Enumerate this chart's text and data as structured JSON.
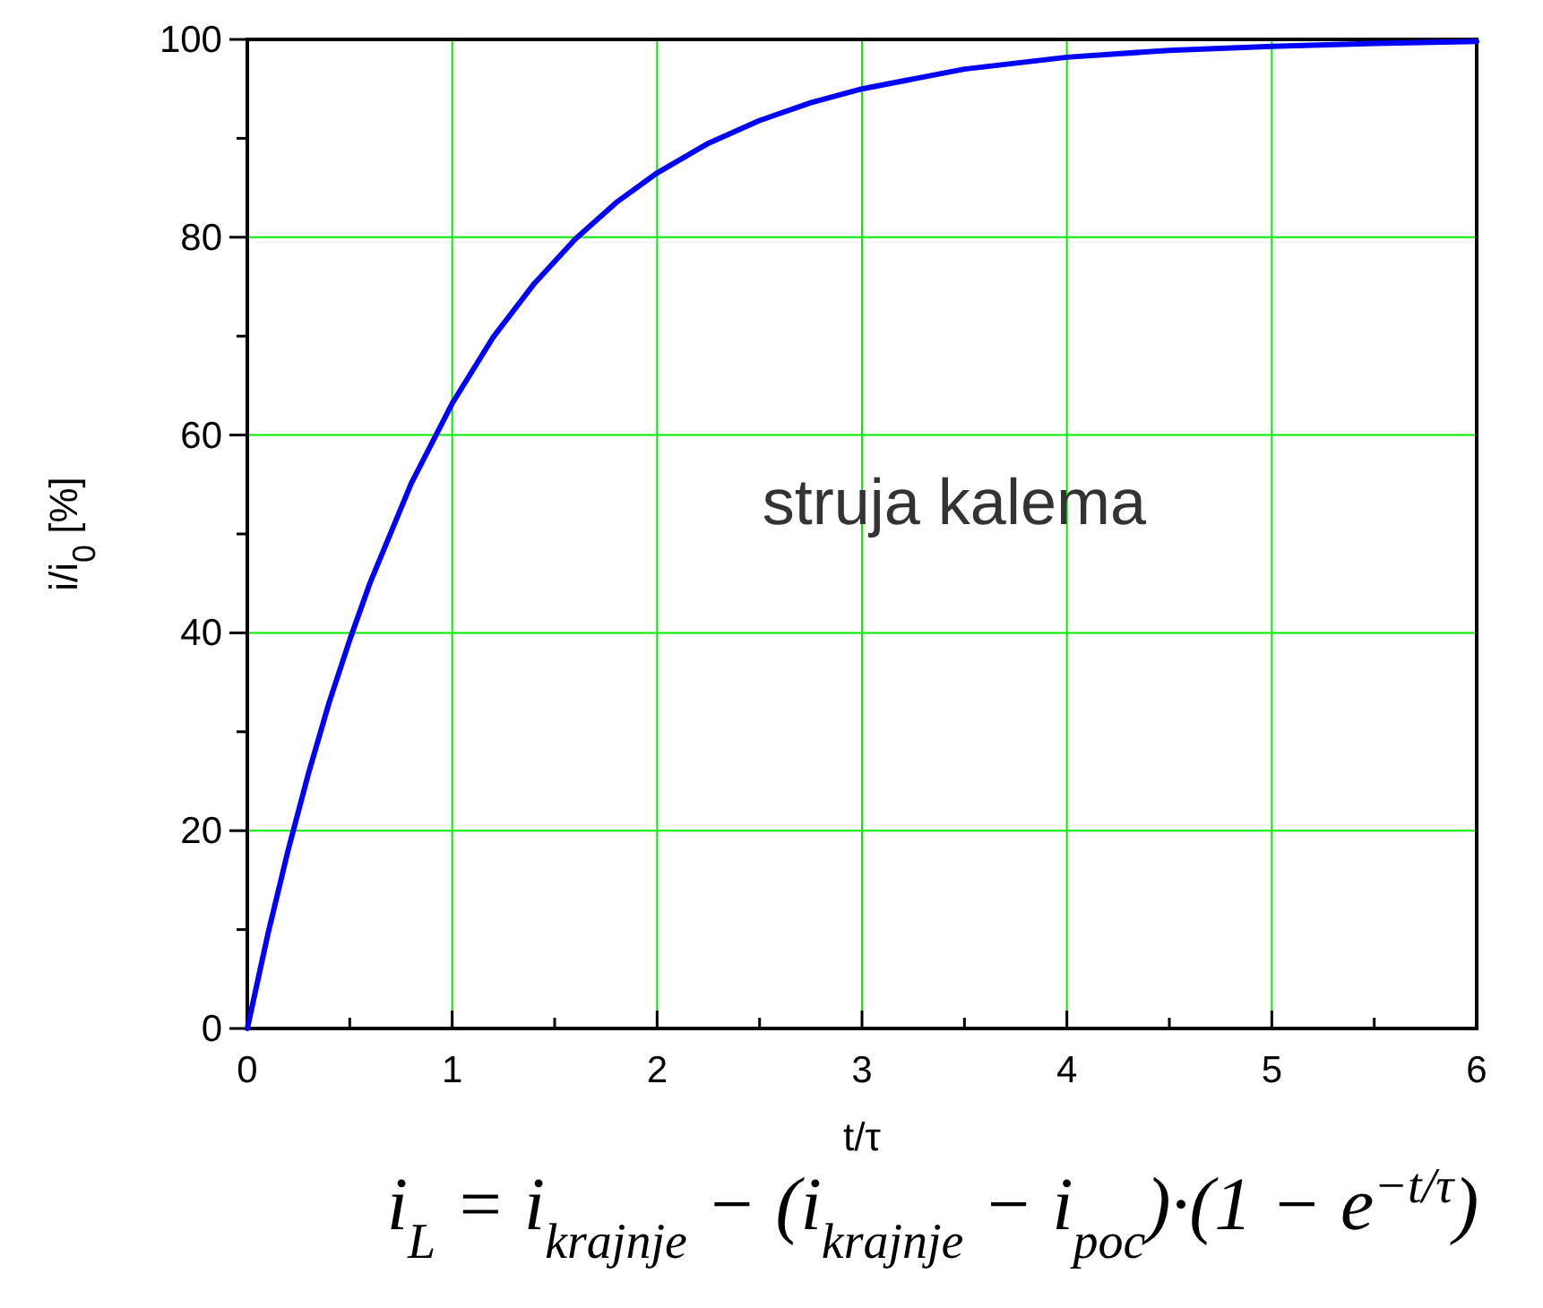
{
  "chart_data": {
    "type": "line",
    "xlabel": "t/τ",
    "ylabel": "i/i$_{0}$ [%]",
    "xlim": [
      0,
      6
    ],
    "xticks": [
      0,
      {
        "value": 0.5,
        "label": null
      },
      1,
      {
        "value": 1.5,
        "label": null
      },
      2,
      {
        "value": 2.5,
        "label": null
      },
      3,
      {
        "value": 3.5,
        "label": null
      },
      4,
      {
        "value": 4.5,
        "label": null
      },
      5,
      {
        "value": 5.5,
        "label": null
      },
      6
    ],
    "ylim": [
      0,
      100
    ],
    "yticks": [
      0,
      {
        "value": 10,
        "label": null
      },
      20,
      {
        "value": 30,
        "label": null
      },
      40,
      {
        "value": 50,
        "label": null
      },
      60,
      {
        "value": 70,
        "label": null
      },
      80,
      {
        "value": 90,
        "label": null
      },
      100
    ],
    "grid": true,
    "marker": "none",
    "line_style": "solid",
    "series": [
      {
        "color": "#0000ff",
        "x": [
          0,
          0.1,
          0.2,
          0.3,
          0.4,
          0.5,
          0.6,
          0.8,
          1,
          1.2,
          1.4,
          1.6,
          1.8,
          2,
          2.25,
          2.5,
          2.75,
          3,
          3.5,
          4,
          4.5,
          5,
          5.5,
          6
        ],
        "values": [
          0,
          9.5,
          18.1,
          25.9,
          33.0,
          39.3,
          45.1,
          55.1,
          63.2,
          69.9,
          75.3,
          79.8,
          83.5,
          86.5,
          89.5,
          91.8,
          93.6,
          95.0,
          97.0,
          98.2,
          98.9,
          99.3,
          99.6,
          99.8
        ]
      }
    ],
    "annotations": [
      "struja kalema",
      "i$_{L}$ = i$_{krajnje}$ − (i$_{krajnje}$ − i$_{poc}$)·(1 − e$^{−t/τ}$)"
    ]
  }
}
